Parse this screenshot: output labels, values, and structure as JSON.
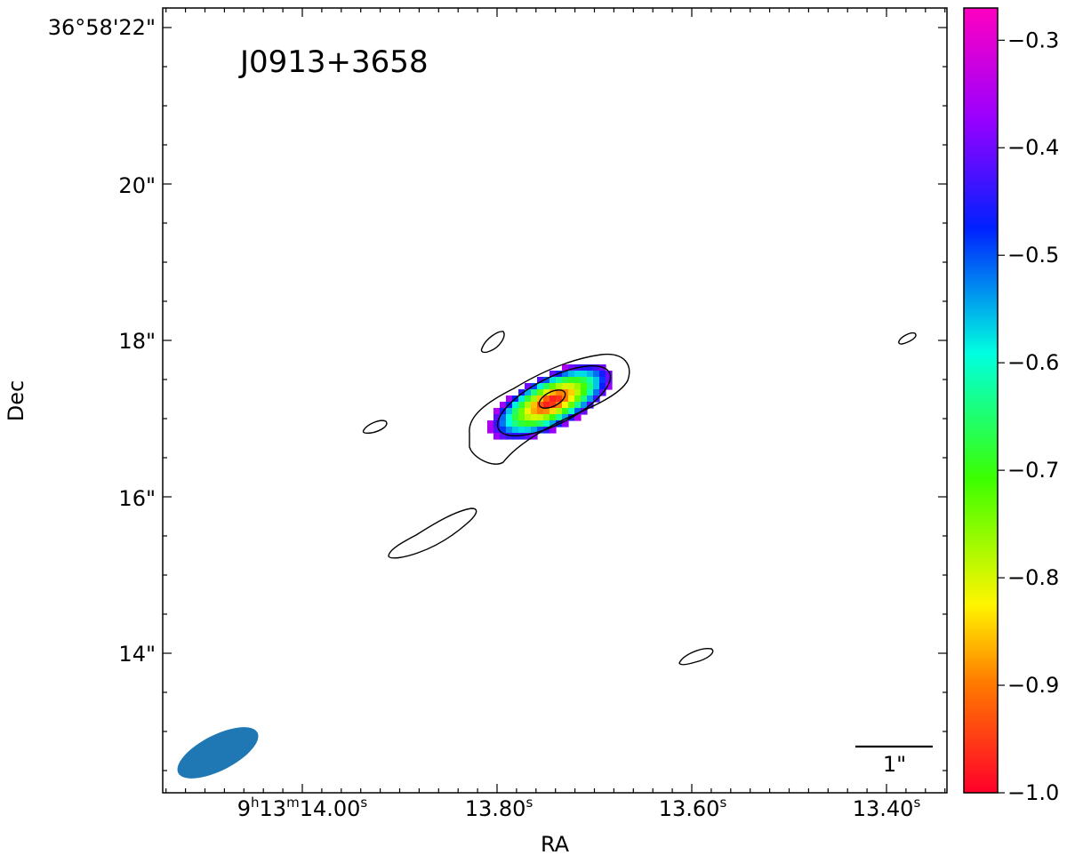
{
  "chart_data": {
    "type": "heatmap",
    "source_name": "J0913+3658",
    "xlabel": "RA",
    "ylabel": "Dec",
    "x_ticks": [
      {
        "label_h": "9",
        "sup_h": "h",
        "label_m": "13",
        "sup_m": "m",
        "label_s": "14.00",
        "sup_s": "s",
        "value_s": 14.0
      },
      {
        "label_s": "13.80",
        "sup_s": "s",
        "value_s": 13.8
      },
      {
        "label_s": "13.60",
        "sup_s": "s",
        "value_s": 13.6
      },
      {
        "label_s": "13.40",
        "sup_s": "s",
        "value_s": 13.4
      }
    ],
    "y_ticks": [
      {
        "label": "36°58'22\"",
        "value_arcsec": 22
      },
      {
        "label": "20\"",
        "value_arcsec": 20
      },
      {
        "label": "18\"",
        "value_arcsec": 18
      },
      {
        "label": "16\"",
        "value_arcsec": 16
      },
      {
        "label": "14\"",
        "value_arcsec": 14
      }
    ],
    "colorbar": {
      "colormap": "gist_rainbow",
      "range": [
        -1.0,
        -0.27
      ],
      "ticks": [
        "−0.3",
        "−0.4",
        "−0.5",
        "−0.6",
        "−0.7",
        "−0.8",
        "−0.9",
        "−1.0"
      ],
      "tick_values": [
        -0.3,
        -0.4,
        -0.5,
        -0.6,
        -0.7,
        -0.8,
        -0.9,
        -1.0
      ]
    },
    "scale_bar_label": "1\"",
    "beam_color": "#1f77b4",
    "peak_value": -1.0,
    "edge_value": -0.35
  }
}
